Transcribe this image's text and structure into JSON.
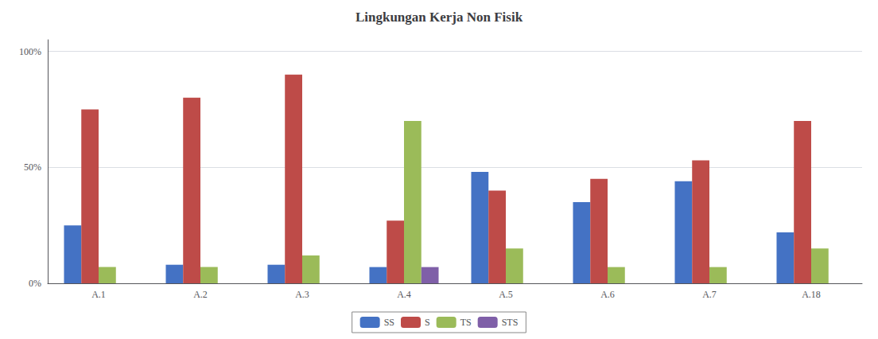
{
  "chart_data": {
    "type": "bar",
    "title": "Lingkungan Kerja Non Fisik",
    "categories": [
      "A.1",
      "A.2",
      "A.3",
      "A.4",
      "A.5",
      "A.6",
      "A.7",
      "A.18"
    ],
    "series": [
      {
        "name": "SS",
        "color": "#4472C4",
        "values": [
          0.25,
          0.08,
          0.08,
          0.07,
          0.48,
          0.35,
          0.44,
          0.22
        ]
      },
      {
        "name": "S",
        "color": "#BE4B48",
        "values": [
          0.75,
          0.8,
          0.9,
          0.27,
          0.4,
          0.45,
          0.53,
          0.7
        ]
      },
      {
        "name": "TS",
        "color": "#9BBB59",
        "values": [
          0.07,
          0.07,
          0.12,
          0.7,
          0.15,
          0.07,
          0.07,
          0.15
        ]
      },
      {
        "name": "STS",
        "color": "#7F5FA8",
        "values": [
          0.0,
          0.0,
          0.0,
          0.07,
          0.0,
          0.0,
          0.0,
          0.0
        ]
      }
    ],
    "ylim": [
      0,
      1.05
    ],
    "yticks": [
      {
        "value": 0.0,
        "label": "0%"
      },
      {
        "value": 0.5,
        "label": "50%"
      },
      {
        "value": 1.0,
        "label": "100%"
      }
    ],
    "grid": true,
    "legend": "bottom"
  }
}
